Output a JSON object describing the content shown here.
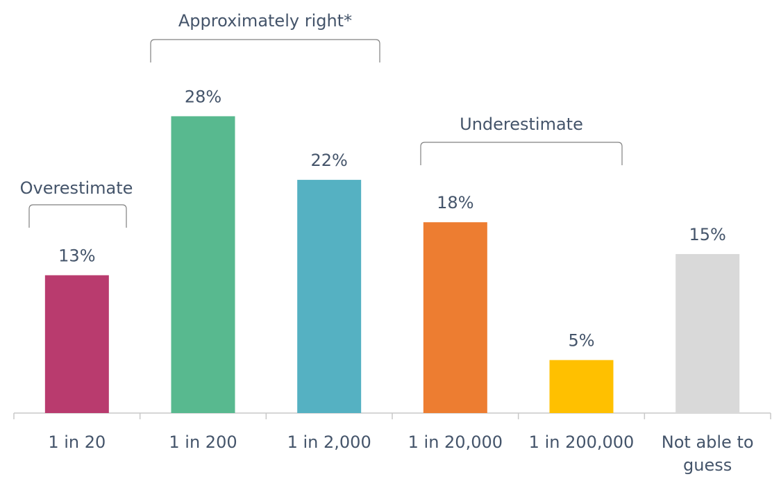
{
  "chart_data": {
    "type": "bar",
    "categories": [
      "1 in 20",
      "1 in 200",
      "1 in 2,000",
      "1 in 20,000",
      "1 in 200,000",
      "Not able to guess"
    ],
    "values": [
      13,
      28,
      22,
      18,
      5,
      15
    ],
    "value_labels": [
      "13%",
      "28%",
      "22%",
      "18%",
      "5%",
      "15%"
    ],
    "colors": [
      "#b93b6e",
      "#58b98f",
      "#55b1c2",
      "#ed7d31",
      "#ffc000",
      "#d9d9d9"
    ],
    "ylim": [
      0,
      30
    ],
    "grid": false,
    "groups": [
      {
        "label": "Overestimate",
        "from": 0,
        "to": 0
      },
      {
        "label": "Approximately right*",
        "from": 1,
        "to": 2
      },
      {
        "label": "Underestimate",
        "from": 3,
        "to": 4
      }
    ],
    "title": "",
    "xlabel": "",
    "ylabel": ""
  }
}
